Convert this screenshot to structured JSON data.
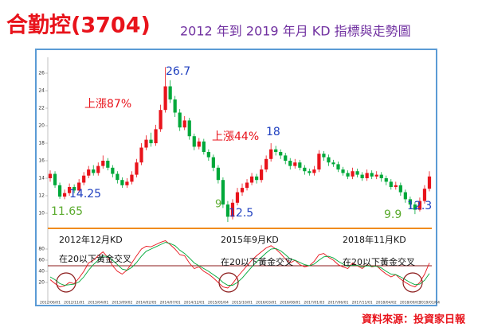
{
  "chart_data": {
    "type": "candlestick",
    "title": "合勤控(3704)",
    "title_color": "#e8131b",
    "subtitle": "2012 年到 2019 年月 KD 指標與走勢圖",
    "subtitle_color": "#7030a0",
    "categories": [
      "2012/06/01",
      null,
      null,
      null,
      null,
      "2012/11/01",
      null,
      null,
      null,
      null,
      "2013/04/01",
      null,
      null,
      null,
      null,
      "2013/09/02",
      null,
      null,
      null,
      null,
      "2014/02/05",
      null,
      null,
      null,
      null,
      "2014/07/01",
      null,
      null,
      null,
      null,
      "2014/12/01",
      null,
      null,
      null,
      null,
      "2015/05/04",
      null,
      null,
      null,
      null,
      "2015/10/01",
      null,
      null,
      null,
      null,
      "2016/03/01",
      null,
      null,
      null,
      null,
      "2016/08/01",
      null,
      null,
      null,
      null,
      "2017/01/03",
      null,
      null,
      null,
      null,
      "2017/06/01",
      null,
      null,
      null,
      null,
      "2017/11/01",
      null,
      null,
      null,
      null,
      "2018/04/02",
      null,
      null,
      null,
      null,
      "2018/09/03",
      null,
      null,
      null,
      "2019/01/04"
    ],
    "ohlc": [
      [
        14.0,
        14.9,
        13.6,
        14.5
      ],
      [
        14.5,
        14.8,
        12.9,
        13.2
      ],
      [
        13.2,
        13.5,
        11.65,
        11.9
      ],
      [
        11.9,
        12.7,
        11.6,
        12.3
      ],
      [
        12.3,
        13.4,
        12.0,
        13.0
      ],
      [
        13.0,
        13.3,
        12.3,
        12.6
      ],
      [
        12.6,
        13.9,
        12.3,
        13.5
      ],
      [
        13.5,
        14.7,
        13.2,
        14.3
      ],
      [
        14.3,
        15.4,
        14.0,
        15.0
      ],
      [
        15.0,
        15.5,
        14.3,
        14.6
      ],
      [
        14.6,
        15.8,
        14.3,
        15.4
      ],
      [
        15.4,
        16.6,
        15.1,
        16.0
      ],
      [
        16.0,
        16.3,
        14.9,
        15.2
      ],
      [
        15.2,
        15.5,
        14.1,
        14.5
      ],
      [
        14.5,
        14.8,
        13.4,
        13.8
      ],
      [
        13.8,
        14.1,
        12.9,
        13.2
      ],
      [
        13.2,
        14.0,
        12.9,
        13.6
      ],
      [
        13.6,
        14.8,
        13.3,
        14.4
      ],
      [
        14.4,
        16.2,
        14.1,
        15.8
      ],
      [
        15.8,
        18.0,
        15.5,
        17.5
      ],
      [
        17.5,
        18.9,
        17.2,
        18.4
      ],
      [
        18.4,
        19.2,
        17.6,
        18.0
      ],
      [
        18.0,
        20.1,
        17.7,
        19.6
      ],
      [
        19.6,
        22.4,
        19.3,
        21.8
      ],
      [
        21.8,
        26.7,
        21.5,
        24.5
      ],
      [
        24.5,
        25.2,
        22.6,
        23.0
      ],
      [
        23.0,
        23.4,
        21.0,
        21.5
      ],
      [
        21.5,
        21.9,
        19.4,
        19.8
      ],
      [
        19.8,
        21.1,
        19.5,
        20.6
      ],
      [
        20.6,
        20.9,
        18.4,
        18.8
      ],
      [
        18.8,
        19.1,
        17.2,
        17.6
      ],
      [
        17.6,
        18.6,
        17.3,
        18.2
      ],
      [
        18.2,
        18.5,
        16.7,
        17.0
      ],
      [
        17.0,
        17.3,
        16.0,
        16.4
      ],
      [
        16.4,
        16.7,
        14.8,
        15.2
      ],
      [
        15.2,
        15.5,
        13.4,
        13.8
      ],
      [
        13.8,
        14.1,
        10.6,
        11.0
      ],
      [
        11.0,
        11.4,
        9.0,
        9.6
      ],
      [
        9.6,
        11.6,
        9.3,
        11.2
      ],
      [
        11.2,
        12.9,
        10.9,
        12.4
      ],
      [
        12.4,
        13.4,
        12.0,
        12.9
      ],
      [
        12.9,
        13.9,
        12.6,
        13.5
      ],
      [
        13.5,
        14.6,
        13.2,
        14.2
      ],
      [
        14.2,
        14.5,
        13.4,
        13.8
      ],
      [
        13.8,
        15.5,
        13.5,
        15.0
      ],
      [
        15.0,
        16.6,
        14.7,
        16.2
      ],
      [
        16.2,
        18.0,
        15.9,
        17.3
      ],
      [
        17.3,
        17.7,
        16.6,
        17.0
      ],
      [
        17.0,
        17.3,
        16.2,
        16.6
      ],
      [
        16.6,
        16.9,
        15.6,
        16.0
      ],
      [
        16.0,
        16.3,
        15.0,
        15.4
      ],
      [
        15.4,
        16.2,
        15.1,
        15.8
      ],
      [
        15.8,
        16.1,
        14.9,
        15.2
      ],
      [
        15.2,
        15.5,
        14.4,
        14.8
      ],
      [
        14.8,
        15.1,
        14.3,
        14.6
      ],
      [
        14.6,
        15.4,
        14.3,
        15.0
      ],
      [
        15.0,
        17.2,
        14.7,
        16.8
      ],
      [
        16.8,
        17.1,
        16.0,
        16.4
      ],
      [
        16.4,
        16.7,
        15.4,
        15.8
      ],
      [
        15.8,
        16.1,
        15.3,
        15.6
      ],
      [
        15.6,
        15.9,
        14.7,
        15.0
      ],
      [
        15.0,
        15.3,
        14.3,
        14.6
      ],
      [
        14.6,
        14.9,
        13.9,
        14.2
      ],
      [
        14.2,
        15.2,
        13.9,
        14.8
      ],
      [
        14.8,
        15.1,
        14.1,
        14.4
      ],
      [
        14.4,
        14.7,
        13.7,
        14.0
      ],
      [
        14.0,
        15.0,
        13.7,
        14.6
      ],
      [
        14.6,
        14.9,
        13.9,
        14.2
      ],
      [
        14.2,
        14.8,
        13.9,
        14.4
      ],
      [
        14.4,
        14.7,
        13.6,
        14.0
      ],
      [
        14.0,
        14.3,
        13.2,
        13.6
      ],
      [
        13.6,
        13.9,
        12.7,
        13.0
      ],
      [
        13.0,
        13.6,
        12.7,
        13.2
      ],
      [
        13.2,
        13.5,
        12.0,
        12.4
      ],
      [
        12.4,
        12.7,
        11.2,
        11.6
      ],
      [
        11.6,
        11.9,
        10.6,
        11.0
      ],
      [
        11.0,
        11.3,
        9.9,
        10.4
      ],
      [
        10.4,
        11.8,
        10.2,
        11.4
      ],
      [
        11.4,
        13.2,
        11.1,
        12.8
      ],
      [
        12.8,
        14.8,
        12.5,
        14.2
      ]
    ],
    "up_color": "#e8131b",
    "down_color": "#00a83a",
    "ylim": [
      9,
      27
    ],
    "yticks": [
      10,
      12,
      14,
      16,
      18,
      20,
      22,
      24,
      26
    ],
    "separator_color": "#f08c1e",
    "kd": {
      "ylim": [
        0,
        100
      ],
      "yticks": [
        20,
        40,
        60,
        80
      ],
      "reference_line": 50,
      "reference_color": "#8b1a1a",
      "series": [
        {
          "color": "#e8131b",
          "values": [
            25,
            18,
            12,
            14,
            20,
            18,
            28,
            40,
            55,
            60,
            68,
            75,
            65,
            50,
            40,
            35,
            42,
            55,
            68,
            80,
            85,
            84,
            88,
            92,
            95,
            88,
            80,
            70,
            68,
            55,
            45,
            48,
            40,
            35,
            28,
            20,
            12,
            10,
            18,
            30,
            40,
            50,
            60,
            68,
            75,
            82,
            86,
            80,
            72,
            62,
            55,
            60,
            52,
            48,
            50,
            58,
            70,
            72,
            65,
            60,
            52,
            48,
            45,
            55,
            50,
            45,
            52,
            48,
            50,
            42,
            35,
            30,
            34,
            26,
            20,
            15,
            12,
            20,
            35,
            55
          ]
        },
        {
          "color": "#00a83a",
          "values": [
            30,
            25,
            18,
            15,
            16,
            17,
            21,
            30,
            42,
            52,
            60,
            67,
            67,
            60,
            52,
            44,
            42,
            47,
            56,
            67,
            76,
            80,
            84,
            88,
            92,
            90,
            86,
            78,
            72,
            64,
            55,
            50,
            45,
            40,
            34,
            28,
            20,
            15,
            15,
            20,
            28,
            38,
            48,
            57,
            65,
            73,
            80,
            81,
            77,
            70,
            62,
            60,
            56,
            52,
            50,
            53,
            60,
            66,
            67,
            64,
            58,
            53,
            49,
            51,
            51,
            48,
            50,
            49,
            49,
            46,
            40,
            35,
            34,
            30,
            25,
            20,
            16,
            17,
            24,
            36
          ]
        }
      ]
    },
    "annotations": [
      {
        "text": "26.7",
        "color": "#1f3fbf"
      },
      {
        "text": "上漲87%",
        "color": "#e8131b"
      },
      {
        "text": "14.25",
        "color": "#1f3fbf"
      },
      {
        "text": "11.65",
        "color": "#5bab2e"
      },
      {
        "text": "上漲44%",
        "color": "#e8131b"
      },
      {
        "text": "18",
        "color": "#1f3fbf"
      },
      {
        "text": "9",
        "color": "#5bab2e"
      },
      {
        "text": "12.5",
        "color": "#1f3fbf"
      },
      {
        "text": "9.9",
        "color": "#5bab2e"
      },
      {
        "text": "12.3",
        "color": "#1f3fbf"
      },
      {
        "text": "2012年12月KD",
        "color": "#111111"
      },
      {
        "text": "在20以下黃金交叉",
        "color": "#111111"
      },
      {
        "text": "2015年9月KD",
        "color": "#111111"
      },
      {
        "text": "在20以下黃金交叉",
        "color": "#111111"
      },
      {
        "text": "2018年11月KD",
        "color": "#111111"
      },
      {
        "text": "在20以下黃金交叉",
        "color": "#111111"
      }
    ],
    "source": "資料來源：投資家日報",
    "source_color": "#e8131b"
  }
}
